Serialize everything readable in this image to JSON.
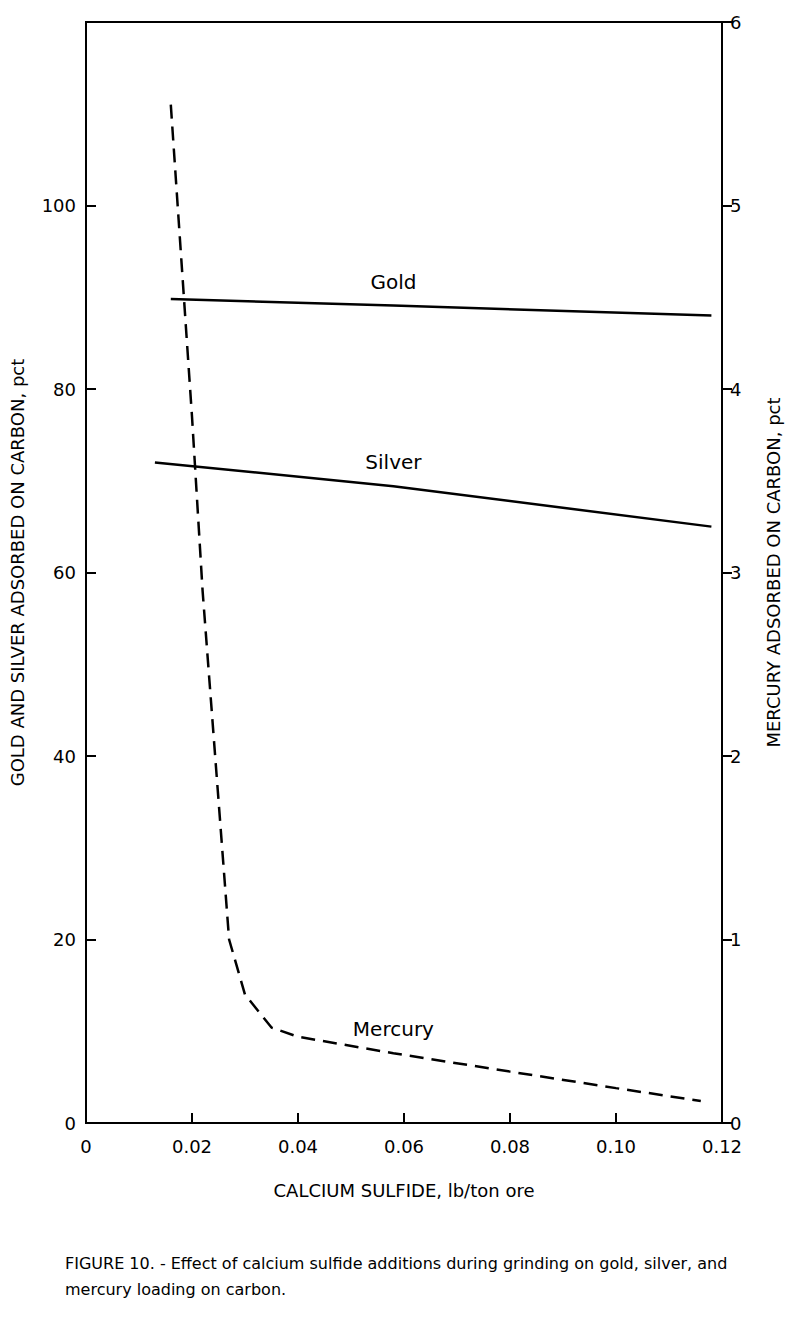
{
  "chart_data": {
    "type": "line",
    "title": "FIGURE 10. - Effect of calcium sulfide additions during grinding on gold, silver, and mercury loading on carbon.",
    "x_label": "CALCIUM SULFIDE, lb/ton ore",
    "y_label": "GOLD AND SILVER ADSORBED ON CARBON, pct",
    "y2_label": "MERCURY ADSORBED ON CARBON, pct",
    "xlim": [
      0,
      0.12
    ],
    "xticks": [
      0,
      0.02,
      0.04,
      0.06,
      0.08,
      {
        "value": 0.1,
        "label": "0.10"
      },
      0.12
    ],
    "ylim": [
      0,
      120
    ],
    "yticks": [
      0,
      20,
      40,
      60,
      80,
      100
    ],
    "y2lim": [
      0,
      6
    ],
    "y2ticks": [
      0,
      1,
      2,
      3,
      4,
      5,
      6
    ],
    "grid": false,
    "series": [
      {
        "name": "Gold",
        "color": "#000000",
        "line_style": "solid",
        "axis": "y",
        "x": [
          0.016,
          0.058,
          0.118
        ],
        "values": [
          89.8,
          89.1,
          88.0
        ]
      },
      {
        "name": "Silver",
        "color": "#000000",
        "line_style": "solid",
        "axis": "y",
        "x": [
          0.013,
          0.058,
          0.118
        ],
        "values": [
          72.0,
          69.4,
          65.0
        ]
      },
      {
        "name": "Mercury",
        "color": "#000000",
        "line_style": "dashed",
        "axis": "y2",
        "x": [
          0.016,
          0.018,
          0.02,
          0.022,
          0.025,
          0.027,
          0.03,
          0.035,
          0.04,
          0.058,
          0.08,
          0.1,
          0.116
        ],
        "values": [
          5.55,
          4.7,
          3.85,
          2.9,
          1.76,
          1.0,
          0.7,
          0.52,
          0.47,
          0.38,
          0.28,
          0.19,
          0.12
        ]
      }
    ]
  }
}
